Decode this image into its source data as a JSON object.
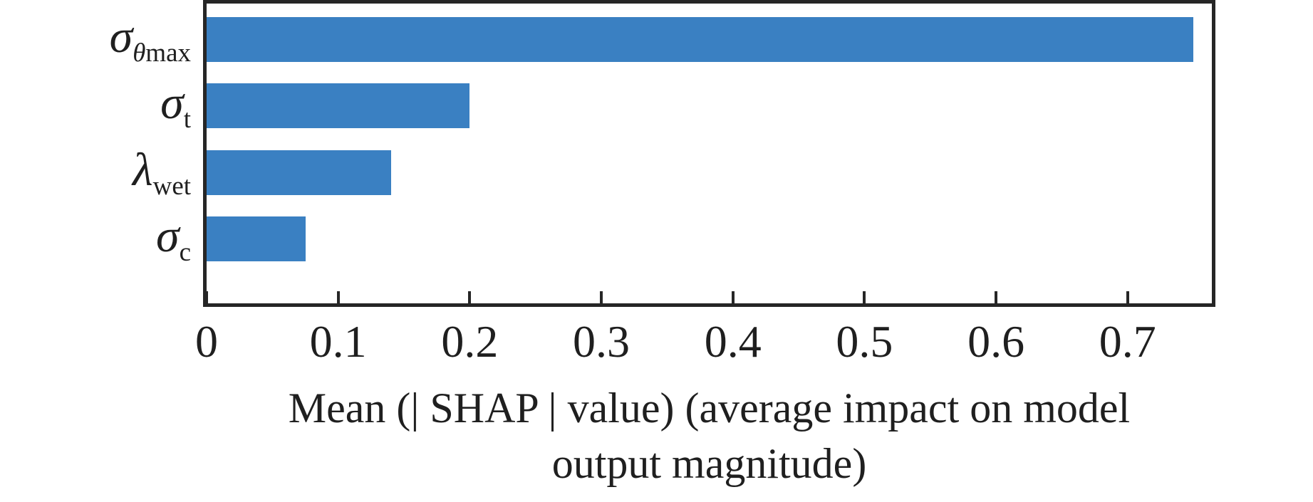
{
  "chart_data": {
    "type": "bar",
    "orientation": "horizontal",
    "title": "",
    "categories": [
      "σ_θmax",
      "σ_t",
      "λ_wet",
      "σ_c"
    ],
    "categories_rich": [
      {
        "main": "σ",
        "sub": [
          {
            "t": "θ",
            "i": true
          },
          {
            "t": "max",
            "i": false
          }
        ]
      },
      {
        "main": "σ",
        "sub": [
          {
            "t": "t",
            "i": false
          }
        ]
      },
      {
        "main": "λ",
        "sub": [
          {
            "t": "wet",
            "i": false
          }
        ]
      },
      {
        "main": "σ",
        "sub": [
          {
            "t": "c",
            "i": false
          }
        ]
      }
    ],
    "values": [
      0.75,
      0.2,
      0.14,
      0.075
    ],
    "xlabel": "Mean (| SHAP | value) (average impact on model output magnitude)",
    "xlabel_lines": [
      "Mean (| SHAP | value) (average impact on model",
      "output magnitude)"
    ],
    "ylabel": "",
    "xlim": [
      0,
      0.764
    ],
    "xticks": [
      0,
      0.1,
      0.2,
      0.3,
      0.4,
      0.5,
      0.6,
      0.7
    ],
    "xtick_labels": [
      "0",
      "0.1",
      "0.2",
      "0.3",
      "0.4",
      "0.5",
      "0.6",
      "0.7"
    ],
    "grid": false,
    "legend": null,
    "tick_direction": "in",
    "bar_color": "#3a80c2",
    "frame_color": "#262626",
    "text_color": "#1f1f1f"
  }
}
